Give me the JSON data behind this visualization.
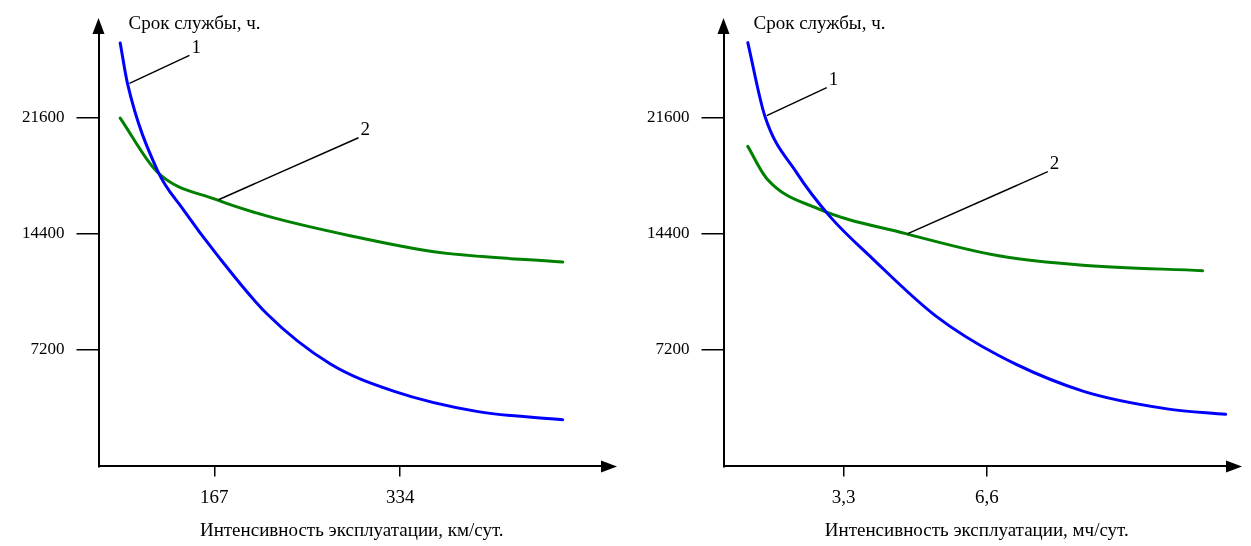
{
  "chart_data": [
    {
      "type": "line",
      "ylabel": "Срок службы, ч.",
      "xlabel": "Интенсивность эксплуатации, км/сут.",
      "xlim": [
        63,
        518
      ],
      "xticks": [
        167,
        334
      ],
      "ylim": [
        0,
        27000
      ],
      "yticks": [
        7200,
        14400,
        21600
      ],
      "grid": false,
      "legend": false,
      "marker": "none",
      "line_style": "solid",
      "series": [
        {
          "color": "#0000ff",
          "x": [
            82.5,
            89,
            116,
            139,
            169,
            214,
            271,
            328,
            404,
            480
          ],
          "values": [
            26200,
            23700,
            18300,
            15900,
            13130,
            9460,
            6350,
            4660,
            3390,
            2890
          ]
        },
        {
          "color": "#008000",
          "x": [
            82.5,
            116,
            169,
            214,
            290,
            366,
            480
          ],
          "values": [
            21550,
            18200,
            16500,
            15500,
            14260,
            13270,
            12640
          ]
        }
      ],
      "annotations": [
        {
          "text": "1",
          "x": 89,
          "y": 23700
        },
        {
          "text": "2",
          "x": 169,
          "y": 16500
        }
      ]
    },
    {
      "type": "line",
      "ylabel": "Срок службы, ч.",
      "xlabel": "Интенсивность эксплуатации, мч/сут.",
      "xlim": [
        0.53,
        12.2
      ],
      "xticks": [
        {
          "value": 3.3,
          "label": "3,3"
        },
        {
          "value": 6.6,
          "label": "6,6"
        }
      ],
      "ylim": [
        0,
        27000
      ],
      "yticks": [
        7200,
        14400,
        21600
      ],
      "grid": false,
      "legend": false,
      "marker": "none",
      "line_style": "solid",
      "series": [
        {
          "color": "#0000ff",
          "x": [
            1.09,
            1.48,
            2.21,
            2.98,
            3.95,
            5.41,
            6.87,
            8.81,
            10.75,
            12.1
          ],
          "values": [
            26220,
            21700,
            18190,
            15470,
            12890,
            9330,
            6860,
            4660,
            3560,
            3220
          ]
        },
        {
          "color": "#008000",
          "x": [
            1.09,
            1.53,
            2.69,
            4.73,
            6.87,
            8.81,
            11.57
          ],
          "values": [
            19800,
            17800,
            15960,
            14400,
            13030,
            12450,
            12110
          ]
        }
      ],
      "annotations": [
        {
          "text": "1",
          "x": 1.48,
          "y": 21700
        },
        {
          "text": "2",
          "x": 4.73,
          "y": 14400
        }
      ]
    }
  ]
}
